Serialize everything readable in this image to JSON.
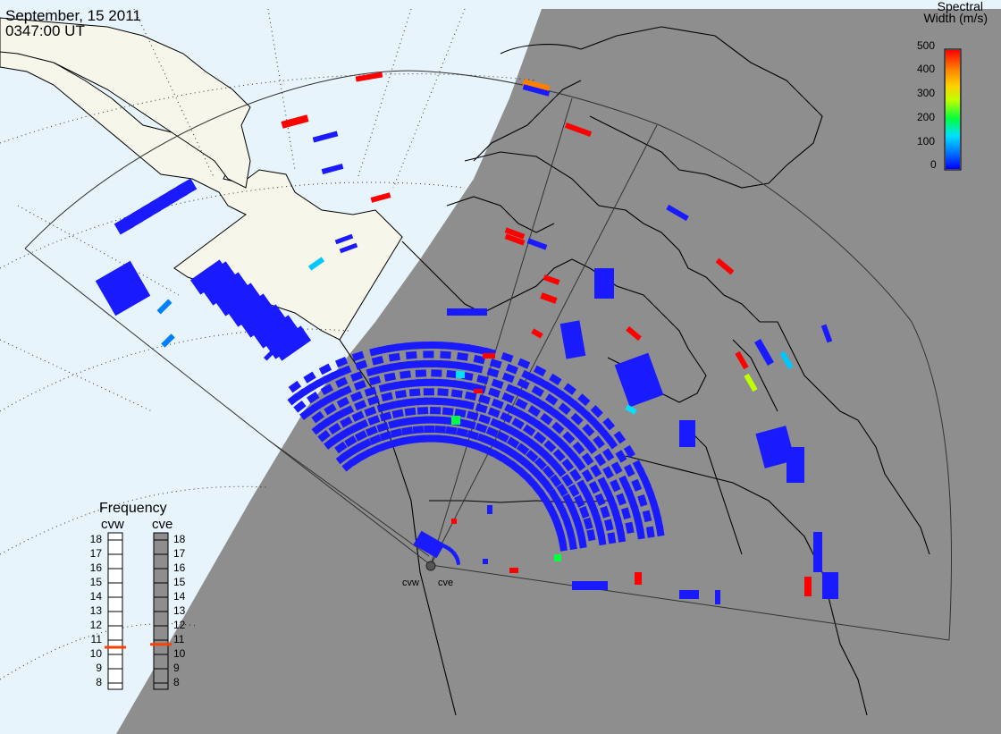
{
  "header": {
    "date": "September, 15 2011",
    "time": "0347:00 UT"
  },
  "colorbar": {
    "title_line1": "Spectral",
    "title_line2": "Width (m/s)",
    "ticks": [
      "500",
      "400",
      "300",
      "200",
      "100",
      "0"
    ],
    "colors": [
      "#0000ff",
      "#0080ff",
      "#00e0ff",
      "#00ff40",
      "#c0ff00",
      "#ffd000",
      "#ff8000",
      "#ff0000"
    ],
    "range": [
      0,
      500
    ]
  },
  "frequency_panel": {
    "title": "Frequency",
    "radars": [
      {
        "name": "cvw",
        "value": 10.5
      },
      {
        "name": "cve",
        "value": 10.7
      }
    ],
    "scale": [
      "18",
      "17",
      "16",
      "15",
      "14",
      "13",
      "12",
      "11",
      "10",
      "9",
      "8"
    ],
    "marker_color": "#ff4000"
  },
  "sites": [
    {
      "name": "cvw"
    },
    {
      "name": "cve"
    }
  ],
  "colors": {
    "ocean_day": "#e8f4fb",
    "land_day": "#f7f6ea",
    "night": "#8e8e8e",
    "coast": "#000000",
    "fov": "#333333"
  }
}
